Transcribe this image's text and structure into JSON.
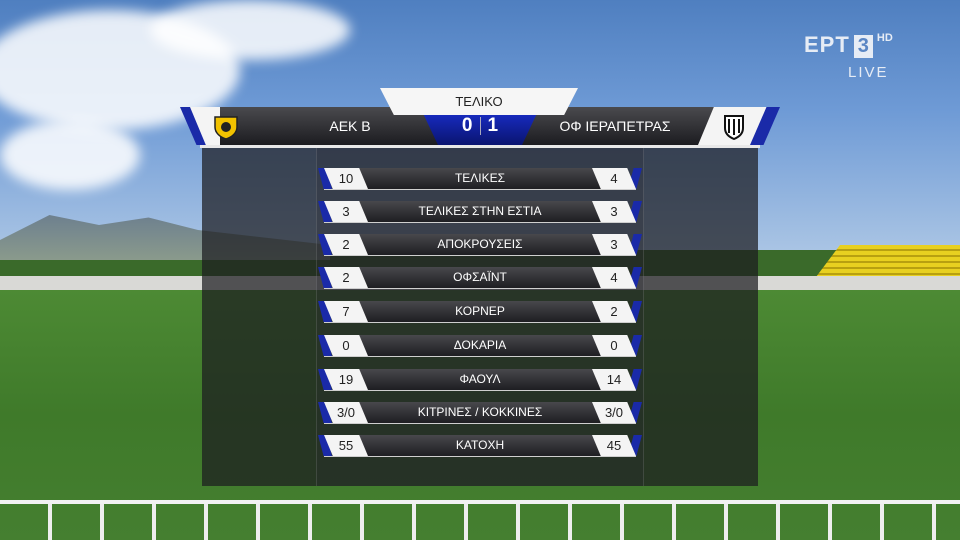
{
  "broadcaster": {
    "name": "ΕΡΤ",
    "channel": "3",
    "quality": "HD",
    "live": "LIVE"
  },
  "match": {
    "status": "ΤΕΛΙΚΟ",
    "home": "ΑΕΚ Β",
    "away": "ΟΦ ΙΕΡΑΠΕΤΡΑΣ",
    "home_score": "0",
    "away_score": "1"
  },
  "colors": {
    "accent": "#1a2aa8",
    "home_crest": "#f2c200"
  },
  "stats": [
    {
      "label": "ΤΕΛΙΚΕΣ",
      "home": "10",
      "away": "4"
    },
    {
      "label": "ΤΕΛΙΚΕΣ ΣΤΗΝ ΕΣΤΙΑ",
      "home": "3",
      "away": "3"
    },
    {
      "label": "ΑΠΟΚΡΟΥΣΕΙΣ",
      "home": "2",
      "away": "3"
    },
    {
      "label": "ΟΦΣΑΪΝΤ",
      "home": "2",
      "away": "4"
    },
    {
      "label": "ΚΟΡΝΕΡ",
      "home": "7",
      "away": "2"
    },
    {
      "label": "ΔΟΚΑΡΙΑ",
      "home": "0",
      "away": "0"
    },
    {
      "label": "ΦΑΟΥΛ",
      "home": "19",
      "away": "14"
    },
    {
      "label": "ΚΙΤΡΙΝΕΣ / ΚΟΚΚΙΝΕΣ",
      "home": "3/0",
      "away": "3/0"
    },
    {
      "label": "ΚΑΤΟΧΗ",
      "home": "55",
      "away": "45"
    }
  ]
}
